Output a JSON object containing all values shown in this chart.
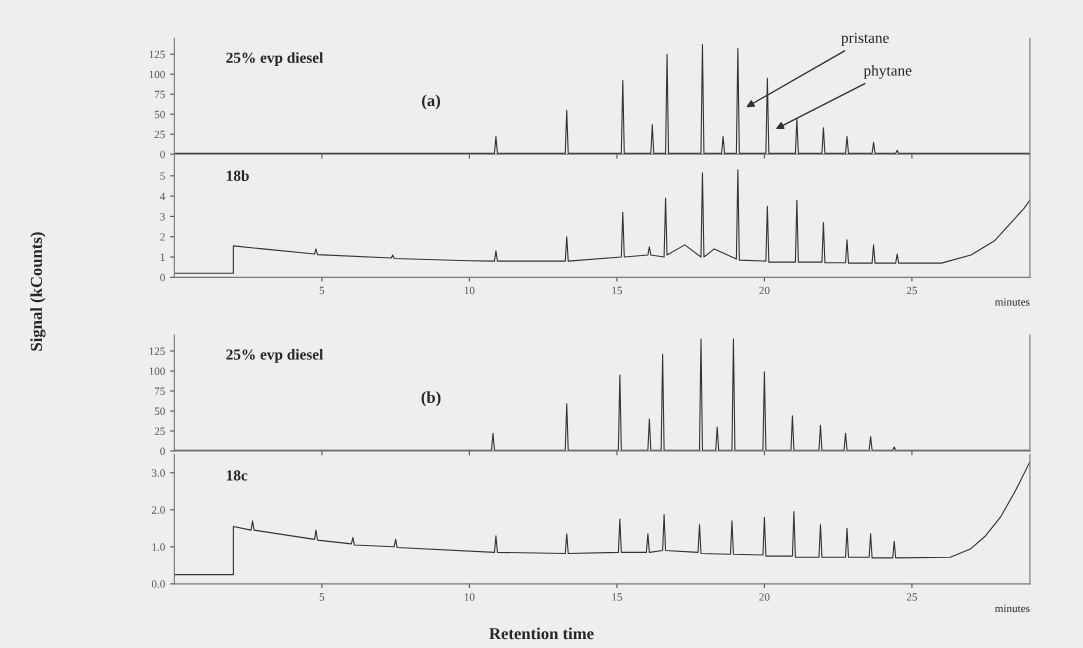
{
  "chart_data": [
    {
      "type": "line",
      "title": "25% evp diesel",
      "ylabel": "Signal (kCounts)",
      "annotations": [
        "(a)",
        {
          "text": "pristane",
          "x": 19.3,
          "y": 57
        },
        {
          "text": "phytane",
          "x": 20.3,
          "y": 30
        }
      ],
      "series": [
        {
          "color": "#333333",
          "x": [
            0,
            10.85,
            10.9,
            10.95,
            13.25,
            13.3,
            13.35,
            15.15,
            15.2,
            15.25,
            16.15,
            16.2,
            16.25,
            16.65,
            16.7,
            16.75,
            17.85,
            17.9,
            17.95,
            18.55,
            18.6,
            18.65,
            19.05,
            19.1,
            19.15,
            20.05,
            20.1,
            20.15,
            21.05,
            21.1,
            21.15,
            21.95,
            22.0,
            22.05,
            22.75,
            22.8,
            22.85,
            23.65,
            23.7,
            23.75,
            24.45,
            24.5,
            24.55,
            29
          ],
          "values": [
            1,
            1,
            22,
            1,
            1,
            55,
            1,
            1,
            92,
            1,
            1,
            37,
            1,
            1,
            125,
            1,
            1,
            137,
            1,
            1,
            22,
            1,
            1,
            132,
            1,
            1,
            95,
            1,
            1,
            44,
            1,
            1,
            33,
            1,
            1,
            22,
            1,
            1,
            15,
            1,
            1,
            5,
            1,
            1
          ]
        }
      ],
      "xlim": [
        0,
        29
      ],
      "xticks": [
        5,
        10,
        15,
        20,
        25
      ],
      "ylim": [
        0,
        145
      ],
      "yticks": [
        0,
        25,
        50,
        75,
        100,
        125
      ],
      "tick_labels": "y",
      "grid": false,
      "legend": false
    },
    {
      "type": "line",
      "title": "18b",
      "xlabel": "minutes",
      "series": [
        {
          "color": "#333333",
          "x": [
            0,
            2.0,
            2.0,
            3,
            4.75,
            4.8,
            4.85,
            7.35,
            7.4,
            7.45,
            10,
            10.85,
            10.9,
            10.95,
            13.25,
            13.3,
            13.35,
            15.15,
            15.2,
            15.25,
            16.05,
            16.1,
            16.15,
            16.6,
            16.65,
            16.7,
            17.3,
            17.85,
            17.9,
            17.95,
            18.3,
            19.05,
            19.1,
            19.15,
            20.05,
            20.1,
            20.15,
            21.05,
            21.1,
            21.15,
            21.95,
            22.0,
            22.05,
            22.75,
            22.8,
            22.85,
            23.65,
            23.7,
            23.75,
            24.45,
            24.5,
            24.55,
            26.0,
            27.0,
            27.8,
            28.3,
            28.8,
            29
          ],
          "values": [
            0.2,
            0.2,
            1.55,
            1.4,
            1.15,
            1.4,
            1.12,
            0.95,
            1.1,
            0.93,
            0.82,
            0.8,
            1.3,
            0.8,
            0.8,
            2.0,
            0.8,
            1.0,
            3.2,
            1.0,
            1.1,
            1.5,
            1.1,
            1.0,
            3.9,
            1.1,
            1.6,
            1.0,
            5.15,
            1.0,
            1.4,
            0.9,
            5.3,
            0.85,
            0.8,
            3.5,
            0.75,
            0.75,
            3.8,
            0.75,
            0.75,
            2.7,
            0.72,
            0.72,
            1.85,
            0.7,
            0.7,
            1.6,
            0.7,
            0.7,
            1.15,
            0.7,
            0.7,
            1.1,
            1.8,
            2.6,
            3.4,
            3.8
          ]
        }
      ],
      "xlim": [
        0,
        29
      ],
      "xticks": [
        5,
        10,
        15,
        20,
        25
      ],
      "ylim": [
        0,
        6
      ],
      "yticks": [
        0,
        1,
        2,
        3,
        4,
        5
      ],
      "grid": false,
      "legend": false
    },
    {
      "type": "line",
      "title": "25% evp diesel",
      "annotations": [
        "(b)"
      ],
      "series": [
        {
          "color": "#333333",
          "x": [
            0,
            10.75,
            10.8,
            10.85,
            13.25,
            13.3,
            13.35,
            15.05,
            15.1,
            15.15,
            16.05,
            16.1,
            16.15,
            16.5,
            16.55,
            16.6,
            17.8,
            17.85,
            17.9,
            18.35,
            18.4,
            18.45,
            18.9,
            18.95,
            19.0,
            19.95,
            20.0,
            20.05,
            20.9,
            20.95,
            21.0,
            21.85,
            21.9,
            21.95,
            22.7,
            22.75,
            22.8,
            23.55,
            23.6,
            23.65,
            24.35,
            24.4,
            24.45,
            29
          ],
          "values": [
            1,
            1,
            22,
            1,
            1,
            59,
            1,
            1,
            95,
            1,
            1,
            40,
            1,
            1,
            121,
            1,
            1,
            140,
            1,
            1,
            30,
            1,
            1,
            140,
            1,
            1,
            99,
            1,
            1,
            44,
            1,
            1,
            32,
            1,
            1,
            22,
            1,
            1,
            18,
            1,
            1,
            5,
            1,
            1
          ]
        }
      ],
      "xlim": [
        0,
        29
      ],
      "xticks": [
        5,
        10,
        15,
        20,
        25
      ],
      "ylim": [
        0,
        145
      ],
      "yticks": [
        0,
        25,
        50,
        75,
        100,
        125
      ],
      "tick_labels": "y",
      "grid": false,
      "legend": false
    },
    {
      "type": "line",
      "title": "18c",
      "xlabel": "minutes",
      "annotations": [
        "Retention time"
      ],
      "series": [
        {
          "color": "#333333",
          "x": [
            0,
            2.0,
            2.0,
            2.6,
            2.65,
            2.7,
            4.75,
            4.8,
            4.85,
            6.0,
            6.05,
            6.1,
            7.45,
            7.5,
            7.55,
            10.85,
            10.9,
            10.95,
            13.25,
            13.3,
            13.35,
            15.05,
            15.1,
            15.15,
            16.0,
            16.05,
            16.1,
            16.55,
            16.6,
            16.65,
            17.75,
            17.8,
            17.85,
            18.85,
            18.9,
            18.95,
            19.95,
            20.0,
            20.05,
            20.95,
            21.0,
            21.05,
            21.85,
            21.9,
            21.95,
            22.75,
            22.8,
            22.85,
            23.55,
            23.6,
            23.65,
            24.35,
            24.4,
            24.45,
            26.3,
            27.0,
            27.5,
            28.0,
            28.5,
            29
          ],
          "values": [
            0.25,
            0.25,
            1.55,
            1.45,
            1.7,
            1.45,
            1.2,
            1.45,
            1.18,
            1.08,
            1.25,
            1.05,
            1.0,
            1.2,
            0.98,
            0.85,
            1.3,
            0.85,
            0.82,
            1.35,
            0.82,
            0.85,
            1.75,
            0.85,
            0.85,
            1.35,
            0.85,
            0.9,
            1.87,
            0.9,
            0.85,
            1.6,
            0.82,
            0.8,
            1.7,
            0.8,
            0.78,
            1.8,
            0.75,
            0.75,
            1.95,
            0.72,
            0.72,
            1.6,
            0.72,
            0.72,
            1.5,
            0.72,
            0.72,
            1.35,
            0.7,
            0.7,
            1.15,
            0.7,
            0.72,
            0.95,
            1.3,
            1.8,
            2.5,
            3.3
          ]
        }
      ],
      "xlim": [
        0,
        29
      ],
      "xticks": [
        5,
        10,
        15,
        20,
        25
      ],
      "ylim": [
        0,
        3.5
      ],
      "yticks": [
        {
          "value": 0,
          "label": "0.0"
        },
        {
          "value": 1,
          "label": "1.0"
        },
        {
          "value": 2,
          "label": "2.0"
        },
        {
          "value": 3,
          "label": "3.0"
        }
      ],
      "grid": false,
      "legend": false
    }
  ]
}
